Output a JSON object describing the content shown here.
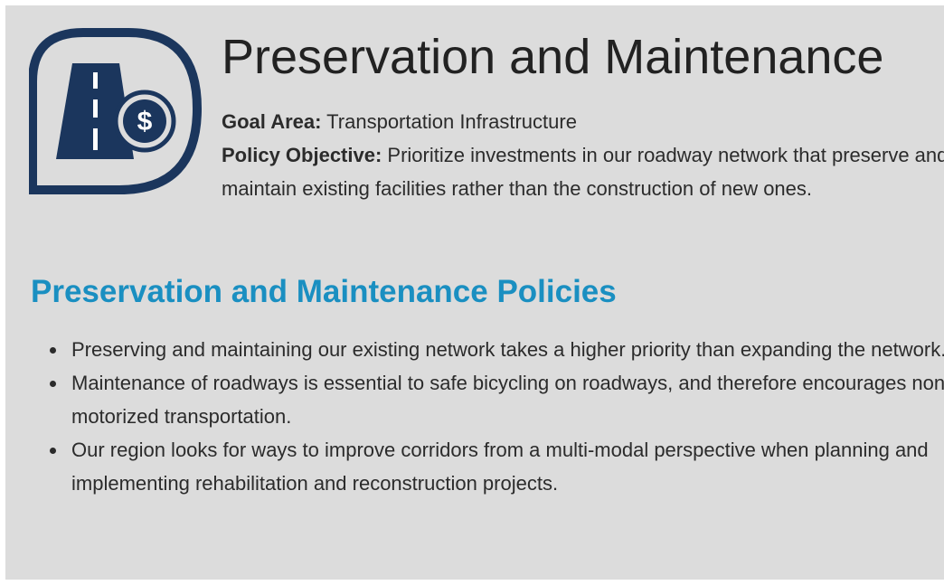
{
  "header": {
    "title": "Preservation and Maintenance"
  },
  "goal_area": {
    "label": "Goal Area:",
    "value": "Transportation Infrastructure"
  },
  "policy_objective": {
    "label": "Policy Objective:",
    "value": "Prioritize investments in our roadway network that preserve and maintain existing facilities rather than the construction of new ones."
  },
  "policies": {
    "heading": "Preservation and Maintenance Policies",
    "items": [
      "Preserving and maintaining our existing network takes a higher priority than expanding the network.",
      "Maintenance of roadways is essential to safe bicycling on roadways, and therefore encourages non-motorized transportation.",
      "Our region looks for ways to improve corridors from a multi-modal perspective when planning and implementing rehabilitation and reconstruction projects."
    ]
  }
}
